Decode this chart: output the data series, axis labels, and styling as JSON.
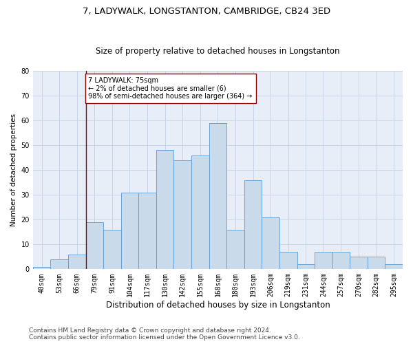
{
  "title": "7, LADYWALK, LONGSTANTON, CAMBRIDGE, CB24 3ED",
  "subtitle": "Size of property relative to detached houses in Longstanton",
  "xlabel": "Distribution of detached houses by size in Longstanton",
  "ylabel": "Number of detached properties",
  "bar_labels": [
    "40sqm",
    "53sqm",
    "66sqm",
    "79sqm",
    "91sqm",
    "104sqm",
    "117sqm",
    "130sqm",
    "142sqm",
    "155sqm",
    "168sqm",
    "180sqm",
    "193sqm",
    "206sqm",
    "219sqm",
    "231sqm",
    "244sqm",
    "257sqm",
    "270sqm",
    "282sqm",
    "295sqm"
  ],
  "bar_values": [
    1,
    4,
    6,
    19,
    16,
    31,
    31,
    48,
    44,
    46,
    59,
    16,
    36,
    21,
    7,
    2,
    7,
    7,
    5,
    5,
    2
  ],
  "bar_color": "#c9daea",
  "bar_edge_color": "#5b9bd5",
  "annotation_line_color": "#8b0000",
  "annotation_box_edge_color": "#8b0000",
  "annotation_box_text": "7 LADYWALK: 75sqm\n← 2% of detached houses are smaller (6)\n98% of semi-detached houses are larger (364) →",
  "annotation_vline_x": 2.5,
  "ylim": [
    0,
    80
  ],
  "yticks": [
    0,
    10,
    20,
    30,
    40,
    50,
    60,
    70,
    80
  ],
  "grid_color": "#c8d4e8",
  "background_color": "#e8eef8",
  "footnote": "Contains HM Land Registry data © Crown copyright and database right 2024.\nContains public sector information licensed under the Open Government Licence v3.0.",
  "title_fontsize": 9.5,
  "subtitle_fontsize": 8.5,
  "xlabel_fontsize": 8.5,
  "ylabel_fontsize": 7.5,
  "tick_fontsize": 7,
  "annotation_fontsize": 7,
  "footnote_fontsize": 6.5
}
